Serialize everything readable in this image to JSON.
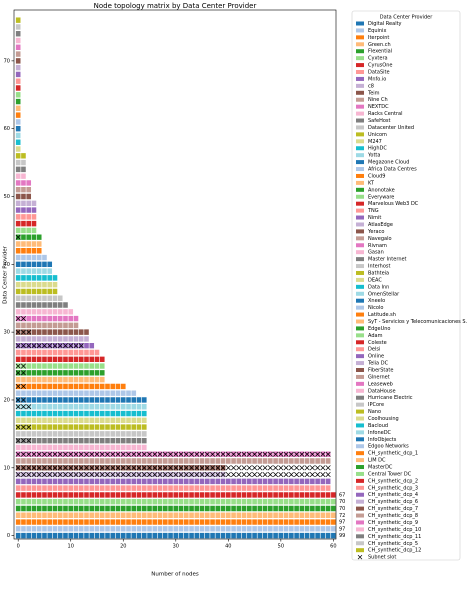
{
  "chart_data": {
    "type": "matrix",
    "title": "Node topology matrix by Data Center Provider",
    "xlabel": "Number of nodes",
    "ylabel": "Data Center Provider",
    "legend_title": "Data Center Provider",
    "subnet_label": "Subnet slot",
    "xlim": [
      -0.8,
      60.5
    ],
    "ylim": [
      -0.5,
      77.5
    ],
    "xticks": [
      0,
      10,
      20,
      30,
      40,
      50,
      60
    ],
    "yticks": [
      0,
      10,
      20,
      30,
      40,
      50,
      60,
      70
    ],
    "palette": [
      "#1f77b4",
      "#aec7e8",
      "#ff7f0e",
      "#ffbb78",
      "#2ca02c",
      "#98df8a",
      "#d62728",
      "#ff9896",
      "#9467bd",
      "#c5b0d5",
      "#8c564b",
      "#c49c94",
      "#e377c2",
      "#f7b6d2",
      "#7f7f7f",
      "#c7c7c7",
      "#bcbd22",
      "#dbdb8d",
      "#17becf",
      "#9edae5"
    ],
    "categories": [
      "Digital Realty",
      "Equinix",
      "Iterpoint",
      "Green.ch",
      "Flexential",
      "Cyxtera",
      "CyrusOne",
      "DataSite",
      "Mnfo.io",
      "c8",
      "Teim",
      "Nine Ch",
      "NEXTDC",
      "Racks Central",
      "SafeHost",
      "Datacenter United",
      "Unicom",
      "M247",
      "HighDC",
      "Yotta",
      "Megazone Cloud",
      "Africa Data Centres",
      "Cloud9",
      "KT",
      "Anonotake",
      "Everyware",
      "Marvelous Web3 DC",
      "TNG",
      "Nimit",
      "AtlasEdge",
      "Yeraco",
      "Navegalo",
      "Rivnam",
      "Gasan",
      "Master Internet",
      "Interhost",
      "Bathteia",
      "DEAC",
      "Data Inn",
      "OmenStellar",
      "Xneelo",
      "Nicolo",
      "Latitude.sh",
      "SyT - Servicios y Telecomunicaciones S.A.",
      "EdgeUno",
      "Adam",
      "Coleste",
      "Delsi",
      "Online",
      "Telia DC",
      "FiberState",
      "Glnernet",
      "Leaseweb",
      "DataHouse",
      "Hurricane Electric",
      "IPCore",
      "Nano",
      "Coolhousing",
      "Bacloud",
      "InfoneDC",
      "InfoObjects",
      "Edgoo Networks",
      "CH_synthetic_dcp_1",
      "LIM DC",
      "MasterDC",
      "Central Tower DC",
      "CH_synthetic_dcp_2",
      "CH_synthetic_dcp_3",
      "CH_synthetic_dcp_4",
      "CH_synthetic_dcp_6",
      "CH_synthetic_dcp_7",
      "CH_synthetic_dcp_8",
      "CH_synthetic_dcp_9",
      "CH_synthetic_dcp_10",
      "CH_synthetic_dcp_11",
      "CH_synthetic_dcp_5",
      "CH_synthetic_dcp_12"
    ],
    "values": [
      99,
      97,
      97,
      72,
      70,
      70,
      67,
      60,
      60,
      40,
      40,
      60,
      60,
      25,
      25,
      25,
      25,
      25,
      25,
      25,
      25,
      23,
      21,
      17,
      17,
      17,
      17,
      16,
      15,
      14,
      14,
      12,
      12,
      11,
      10,
      9,
      8,
      8,
      8,
      7,
      7,
      6,
      5,
      5,
      5,
      4,
      4,
      4,
      4,
      4,
      3,
      3,
      3,
      2,
      2,
      2,
      2,
      1,
      1,
      1,
      1,
      1,
      1,
      1,
      1,
      1,
      1,
      1,
      1,
      1,
      1,
      1,
      1,
      1,
      1,
      1,
      1
    ],
    "subnet_slots": [
      0,
      0,
      0,
      0,
      0,
      0,
      0,
      0,
      0,
      60,
      60,
      0,
      60,
      0,
      3,
      0,
      3,
      0,
      0,
      3,
      2,
      0,
      2,
      0,
      2,
      2,
      0,
      0,
      13,
      0,
      3,
      0,
      2,
      0,
      0,
      0,
      0,
      0,
      0,
      0,
      0,
      0,
      0,
      0,
      1,
      0,
      0,
      0,
      0,
      0,
      0,
      0,
      0,
      0,
      0,
      0,
      0,
      0,
      0,
      0,
      0,
      0,
      0,
      0,
      0,
      0,
      0,
      0,
      0,
      0,
      0,
      0,
      0,
      0,
      0,
      0,
      0
    ]
  }
}
